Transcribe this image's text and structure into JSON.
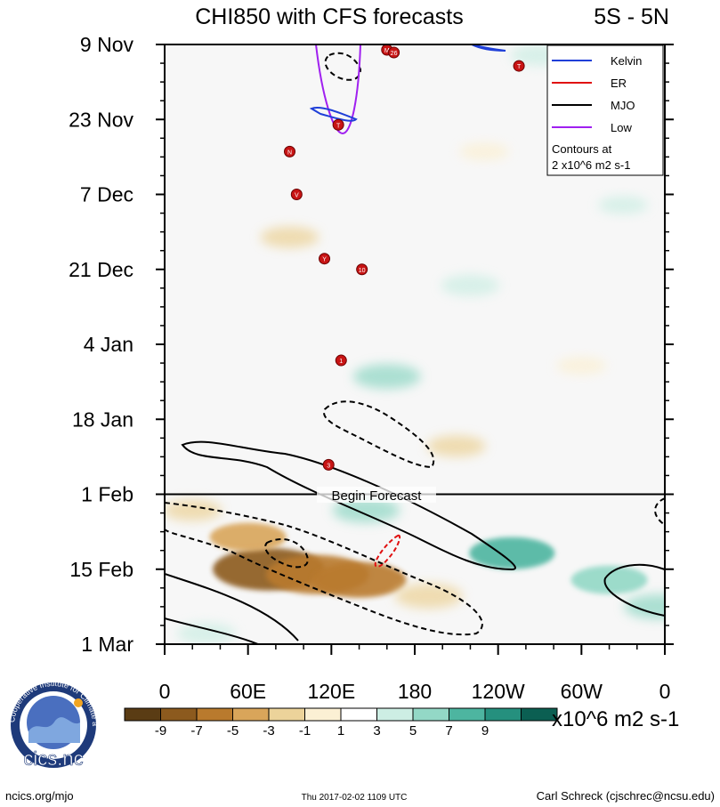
{
  "chart_data": {
    "type": "heatmap",
    "title": "CHI850 with CFS forecasts",
    "region": "5S - 5N",
    "x_ticks": [
      "0",
      "60E",
      "120E",
      "180",
      "120W",
      "60W",
      "0"
    ],
    "x_range_deg_east": [
      0,
      360
    ],
    "y_ticks": [
      "9 Nov",
      "23 Nov",
      "7 Dec",
      "21 Dec",
      "4 Jan",
      "18 Jan",
      "1 Feb",
      "15 Feb",
      "1 Mar"
    ],
    "y_range_days": [
      0,
      112
    ],
    "forecast_start_day": 84,
    "forecast_label": "Begin Forecast",
    "colorbar": {
      "levels": [
        "-9",
        "-7",
        "-5",
        "-3",
        "-1",
        "1",
        "3",
        "5",
        "7",
        "9"
      ],
      "colors": [
        "#5a3c14",
        "#8c5a1e",
        "#b97a2d",
        "#d9a55a",
        "#ecd39a",
        "#fbf0d4",
        "#ffffff",
        "#cdeee4",
        "#93d8c6",
        "#4db5a0",
        "#25907e",
        "#0b5f52"
      ],
      "units": "x10^6 m2 s-1"
    },
    "legend": [
      {
        "label": "Kelvin",
        "color": "#1f3fd8",
        "dash": "solid"
      },
      {
        "label": "ER",
        "color": "#e01010",
        "dash": "solid"
      },
      {
        "label": "MJO",
        "color": "#000000",
        "dash": "solid"
      },
      {
        "label": "Low",
        "color": "#a020f0",
        "dash": "solid"
      }
    ],
    "legend_note": [
      "Contours at",
      "2 x10^6 m2 s-1"
    ],
    "anomaly_blobs": [
      {
        "lon": 75,
        "day": 98,
        "value": -9
      },
      {
        "lon": 110,
        "day": 99,
        "value": -8
      },
      {
        "lon": 140,
        "day": 100,
        "value": -7
      },
      {
        "lon": 60,
        "day": 92,
        "value": -5
      },
      {
        "lon": 20,
        "day": 87,
        "value": -3
      },
      {
        "lon": 190,
        "day": 103,
        "value": -4
      },
      {
        "lon": 90,
        "day": 36,
        "value": -3
      },
      {
        "lon": 230,
        "day": 20,
        "value": -2
      },
      {
        "lon": 210,
        "day": 75,
        "value": -3
      },
      {
        "lon": 300,
        "day": 60,
        "value": -2
      },
      {
        "lon": 250,
        "day": 95,
        "value": 6
      },
      {
        "lon": 320,
        "day": 100,
        "value": 5
      },
      {
        "lon": 355,
        "day": 105,
        "value": 4
      },
      {
        "lon": 145,
        "day": 87,
        "value": 4
      },
      {
        "lon": 30,
        "day": 110,
        "value": 3
      },
      {
        "lon": 160,
        "day": 62,
        "value": 4
      },
      {
        "lon": 220,
        "day": 45,
        "value": 3
      },
      {
        "lon": 270,
        "day": 2,
        "value": 3
      },
      {
        "lon": 330,
        "day": 30,
        "value": 2
      }
    ],
    "storms": [
      {
        "lon": 160,
        "day": 1,
        "label": "M"
      },
      {
        "lon": 165,
        "day": 1.5,
        "label": "26"
      },
      {
        "lon": 255,
        "day": 4,
        "label": "T"
      },
      {
        "lon": 125,
        "day": 15,
        "label": "T"
      },
      {
        "lon": 90,
        "day": 20,
        "label": "N"
      },
      {
        "lon": 95,
        "day": 28,
        "label": "V"
      },
      {
        "lon": 115,
        "day": 40,
        "label": "Y"
      },
      {
        "lon": 142,
        "day": 42,
        "label": "10"
      },
      {
        "lon": 127,
        "day": 59,
        "label": "1"
      },
      {
        "lon": 118,
        "day": 78.5,
        "label": "3"
      }
    ],
    "footer": {
      "left": "ncics.org/mjo",
      "center": "Thu 2017-02-02 1109 UTC",
      "right": "Carl Schreck (cjschrec@ncsu.edu)",
      "logo_text": "cics.nc",
      "logo_ring": "Cooperative Institute for Climate and Satellites"
    }
  }
}
